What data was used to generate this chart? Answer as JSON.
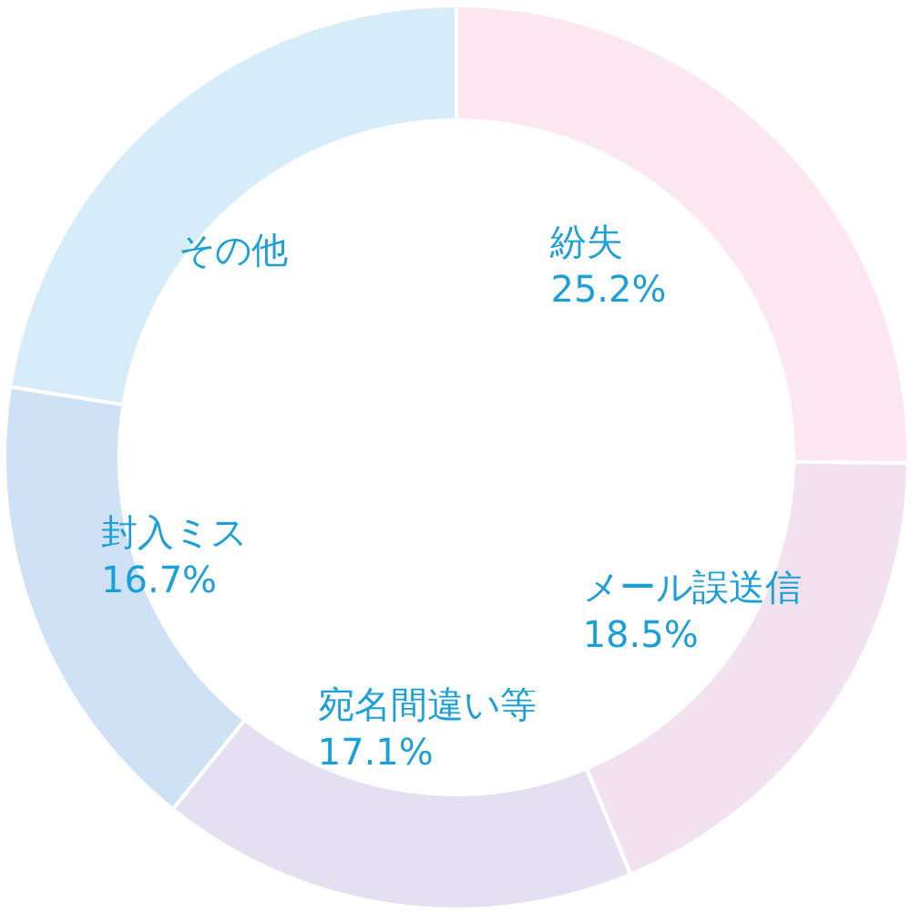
{
  "chart_data": {
    "type": "donut",
    "categories": [
      "紛失",
      "メール誤送信",
      "宛名間違い等",
      "封入ミス",
      "その他"
    ],
    "values": [
      25.2,
      18.5,
      17.1,
      16.7,
      22.5
    ],
    "colors": [
      "#fce6f0",
      "#f2e2ef",
      "#e4e0f1",
      "#cfe2f5",
      "#d6ecf8"
    ],
    "value_labels": [
      "25.2%",
      "18.5%",
      "17.1%",
      "16.7%",
      null
    ]
  }
}
